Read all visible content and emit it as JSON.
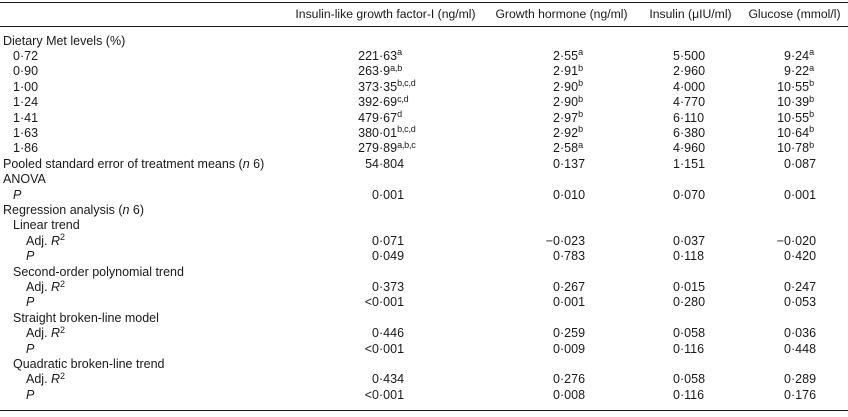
{
  "colors": {
    "text": "#1a1a1a",
    "rule": "#1a1a1a",
    "background": "#ffffff"
  },
  "table": {
    "columns": [
      {
        "label": ""
      },
      {
        "label": "Insulin-like growth factor-I (ng/ml)"
      },
      {
        "label": "Growth hormone (ng/ml)"
      },
      {
        "label": "Insulin (μIU/ml)"
      },
      {
        "label": "Glucose (mmol/l)"
      }
    ],
    "rows": [
      {
        "label": "Dietary Met levels (%)",
        "indent": 0,
        "values": [
          "",
          "",
          "",
          ""
        ]
      },
      {
        "label": "0·72",
        "indent": 1,
        "values": [
          "221·63^a^",
          "2·55^a^",
          "5·500",
          "9·24^a^"
        ]
      },
      {
        "label": "0·90",
        "indent": 1,
        "values": [
          "263·9^a,b^",
          "2·91^b^",
          "2·960",
          "9·22^a^"
        ]
      },
      {
        "label": "1·00",
        "indent": 1,
        "values": [
          "373·35^b,c,d^",
          "2·90^b^",
          "4·000",
          "10·55^b^"
        ]
      },
      {
        "label": "1·24",
        "indent": 1,
        "values": [
          "392·69^c,d^",
          "2·90^b^",
          "4·770",
          "10·39^b^"
        ]
      },
      {
        "label": "1·41",
        "indent": 1,
        "values": [
          "479·67^d^",
          "2·97^b^",
          "6·110",
          "10·55^b^"
        ]
      },
      {
        "label": "1·63",
        "indent": 1,
        "values": [
          "380·01^b,c,d^",
          "2·92^b^",
          "6·380",
          "10·64^b^"
        ]
      },
      {
        "label": "1·86",
        "indent": 1,
        "values": [
          "279·89^a,b,c^",
          "2·58^a^",
          "4·960",
          "10·78^b^"
        ]
      },
      {
        "label": "Pooled standard error of treatment means (*n* 6)",
        "indent": 0,
        "values": [
          "54·804",
          "0·137",
          "1·151",
          "0·087"
        ]
      },
      {
        "label": "ANOVA",
        "indent": 0,
        "values": [
          "",
          "",
          "",
          ""
        ]
      },
      {
        "label": "*P*",
        "indent": 1,
        "values": [
          "0·001",
          "0·010",
          "0·070",
          "0·001"
        ]
      },
      {
        "label": "Regression analysis (*n* 6)",
        "indent": 0,
        "values": [
          "",
          "",
          "",
          ""
        ]
      },
      {
        "label": "Linear trend",
        "indent": 1,
        "values": [
          "",
          "",
          "",
          ""
        ]
      },
      {
        "label": "Adj. *R*^2^",
        "indent": 2,
        "values": [
          "0·071",
          "−0·023",
          "0·037",
          "−0·020"
        ]
      },
      {
        "label": "*P*",
        "indent": 2,
        "values": [
          "0·049",
          "0·783",
          "0·118",
          "0·420"
        ]
      },
      {
        "label": "Second-order polynomial trend",
        "indent": 1,
        "values": [
          "",
          "",
          "",
          ""
        ]
      },
      {
        "label": "Adj. *R*^2^",
        "indent": 2,
        "values": [
          "0·373",
          "0·267",
          "0·015",
          "0·247"
        ]
      },
      {
        "label": "*P*",
        "indent": 2,
        "values": [
          "<0·001",
          "0·001",
          "0·280",
          "0·053"
        ]
      },
      {
        "label": "Straight broken-line model",
        "indent": 1,
        "values": [
          "",
          "",
          "",
          ""
        ]
      },
      {
        "label": "Adj. *R*^2^",
        "indent": 2,
        "values": [
          "0·446",
          "0·259",
          "0·058",
          "0·036"
        ]
      },
      {
        "label": "*P*",
        "indent": 2,
        "values": [
          "<0·001",
          "0·009",
          "0·116",
          "0·448"
        ]
      },
      {
        "label": "Quadratic broken-line trend",
        "indent": 1,
        "values": [
          "",
          "",
          "",
          ""
        ]
      },
      {
        "label": "Adj. *R*^2^",
        "indent": 2,
        "values": [
          "0·434",
          "0·276",
          "0·058",
          "0·289"
        ]
      },
      {
        "label": "*P*",
        "indent": 2,
        "values": [
          "<0·001",
          "0·008",
          "0·116",
          "0·176"
        ]
      }
    ]
  }
}
